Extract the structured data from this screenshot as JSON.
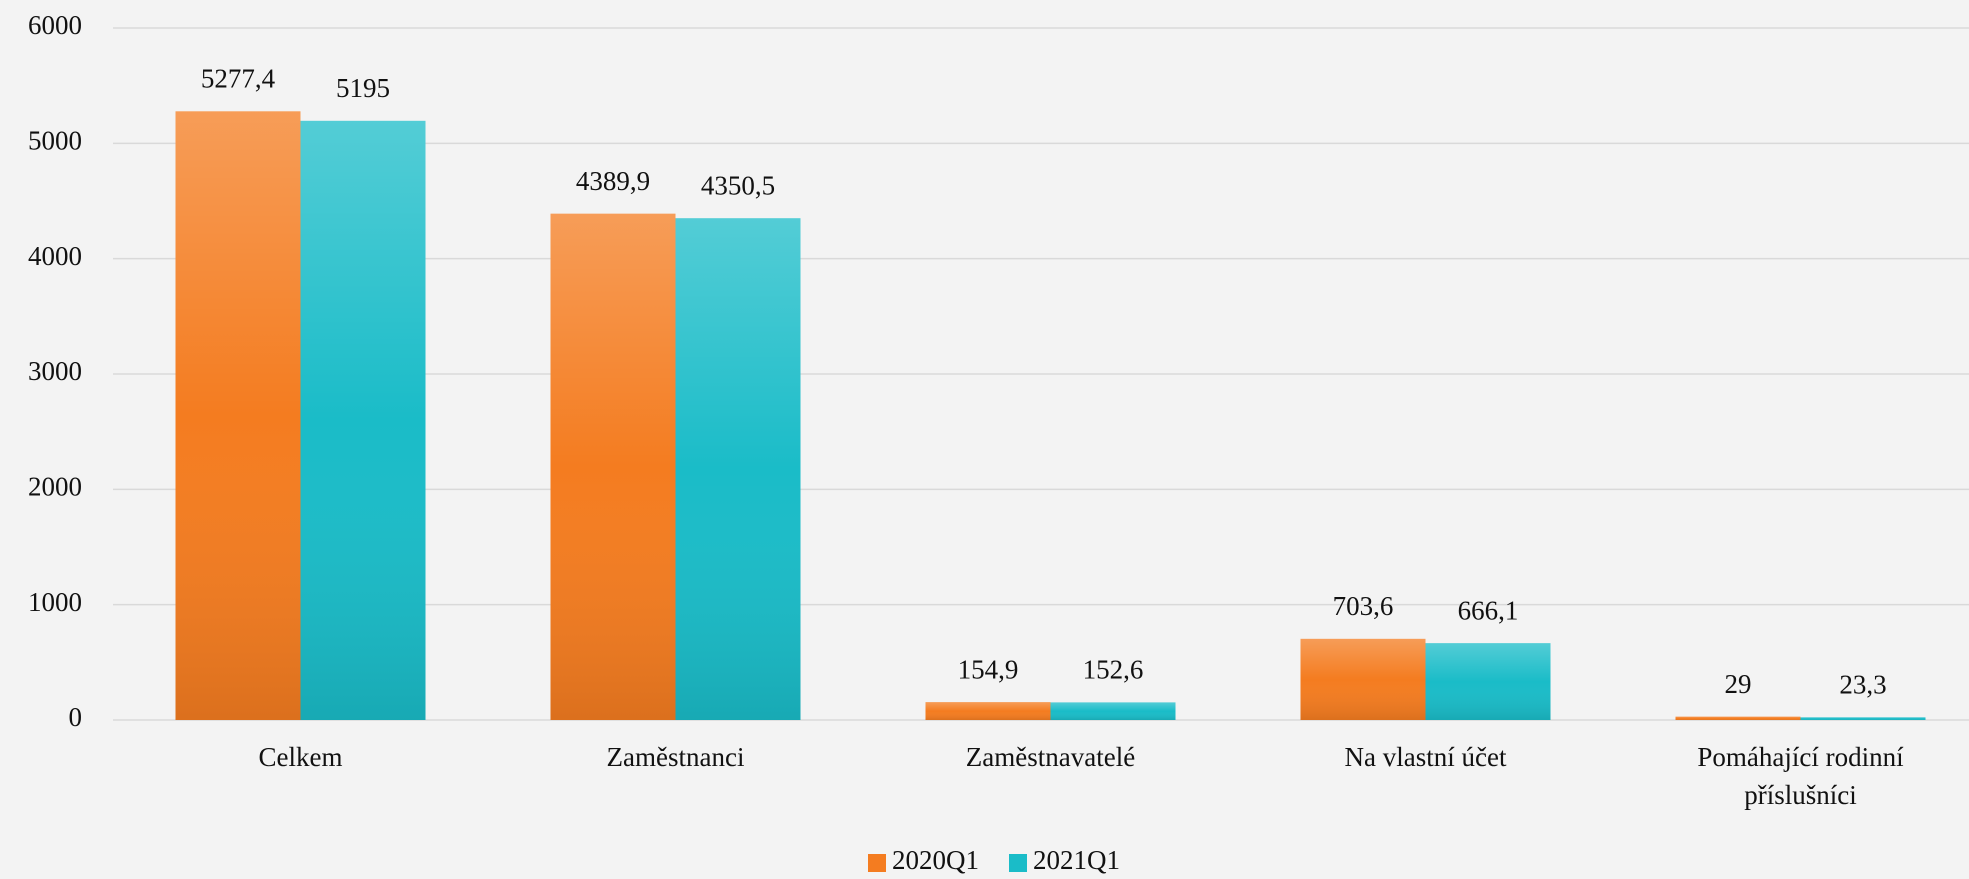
{
  "chart_data": {
    "type": "bar",
    "categories": [
      "Celkem",
      "Zaměstnanci",
      "Zaměstnavatelé",
      "Na vlastní účet",
      "Pomáhající rodinní příslušníci"
    ],
    "series": [
      {
        "name": "2020Q1",
        "color": "#f47c20",
        "values": [
          5277.4,
          4389.9,
          154.9,
          703.6,
          29
        ],
        "value_labels": [
          "5277,4",
          "4389,9",
          "154,9",
          "703,6",
          "29"
        ]
      },
      {
        "name": "2021Q1",
        "color": "#1abcc8",
        "values": [
          5195,
          4350.5,
          152.6,
          666.1,
          23.3
        ],
        "value_labels": [
          "5195",
          "4350,5",
          "152,6",
          "666,1",
          "23,3"
        ]
      }
    ],
    "ylim": [
      0,
      6000
    ],
    "yticks": [
      0,
      1000,
      2000,
      3000,
      4000,
      5000,
      6000
    ],
    "grid": true,
    "legend": "bottom"
  }
}
